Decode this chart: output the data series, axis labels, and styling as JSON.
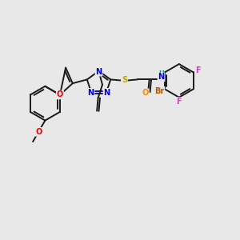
{
  "background_color": "#e8e8e8",
  "bond_color": "#1a1a1a",
  "bond_width": 1.4,
  "atom_colors": {
    "N": "#0000dd",
    "O": "#ee0000",
    "S": "#bbaa00",
    "Br": "#bb5500",
    "F": "#cc44bb",
    "H": "#008888",
    "C": "#1a1a1a"
  },
  "font_size": 7.0,
  "fig_width": 3.0,
  "fig_height": 3.0,
  "dpi": 100
}
